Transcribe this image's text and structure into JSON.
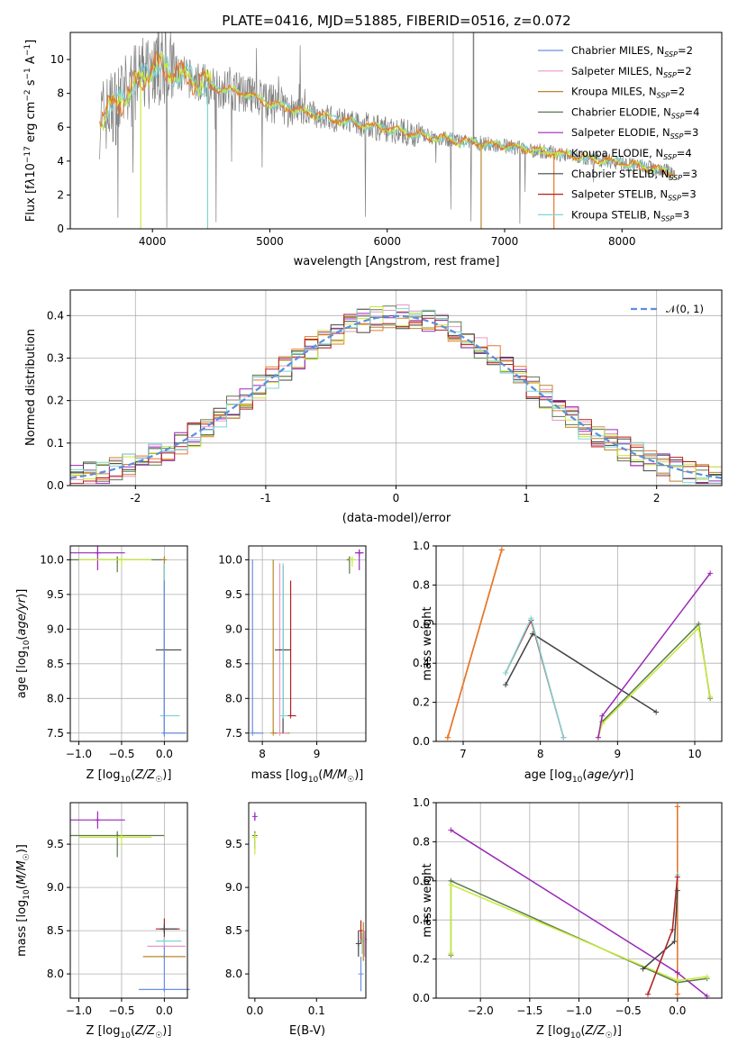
{
  "colors": {
    "Chabrier MILES": "#6b8fe0",
    "Salpeter MILES": "#e79ac6",
    "Kroupa MILES": "#b9862b",
    "Chabrier ELODIE": "#5a7a4a",
    "Salpeter ELODIE": "#9a28b6",
    "Kroupa ELODIE": "#c8ea3a",
    "Chabrier STELIB": "#444444",
    "Salpeter STELIB": "#b51f1f",
    "Kroupa STELIB": "#7fd4d6",
    "data": "#808080",
    "orange": "#e6782a",
    "gauss": "#5b8ede"
  },
  "chart_data": [
    {
      "id": "spectrum",
      "type": "line",
      "title": "PLATE=0416, MJD=51885, FIBERID=0516, z=0.072",
      "xlabel": "wavelength [Angstrom, rest frame]",
      "ylabel": "Flux [fλ10−17 erg cm−2 s−1 A−1]",
      "xlim": [
        3300,
        8850
      ],
      "ylim": [
        0,
        11.6
      ],
      "xticks": [
        4000,
        5000,
        6000,
        7000,
        8000
      ],
      "yticks": [
        0,
        2,
        4,
        6,
        8,
        10
      ],
      "grid": false,
      "legend": [
        {
          "name": "Chabrier MILES",
          "nssp": "2"
        },
        {
          "name": "Salpeter MILES",
          "nssp": "2"
        },
        {
          "name": "Kroupa MILES",
          "nssp": "2"
        },
        {
          "name": "Chabrier ELODIE",
          "nssp": "4"
        },
        {
          "name": "Salpeter ELODIE",
          "nssp": "3"
        },
        {
          "name": "Kroupa ELODIE",
          "nssp": "4"
        },
        {
          "name": "Chabrier STELIB",
          "nssp": "3"
        },
        {
          "name": "Salpeter STELIB",
          "nssp": "3"
        },
        {
          "name": "Kroupa STELIB",
          "nssp": "3"
        }
      ],
      "continuum_x": [
        3550,
        3700,
        3850,
        4000,
        4100,
        4300,
        4500,
        4800,
        5000,
        5300,
        5600,
        6000,
        6300,
        6600,
        7000,
        7400,
        7700,
        8000,
        8300,
        8450
      ],
      "continuum_y": [
        6.5,
        7.4,
        8.5,
        9.6,
        9.5,
        8.9,
        8.4,
        8.0,
        7.4,
        6.9,
        6.4,
        5.9,
        5.5,
        5.2,
        4.9,
        4.5,
        4.2,
        3.9,
        3.5,
        3.3
      ]
    },
    {
      "id": "residuals",
      "type": "line",
      "xlabel": "(data-model)/error",
      "ylabel": "Normed distribution",
      "xlim": [
        -2.5,
        2.5
      ],
      "ylim": [
        0,
        0.46
      ],
      "xticks": [
        -2,
        -1,
        0,
        1,
        2
      ],
      "yticks": [
        0.0,
        0.1,
        0.2,
        0.3,
        0.4
      ],
      "grid": true,
      "legend": "𝒩(0, 1)",
      "legend_position": "top-right"
    },
    {
      "id": "age-vs-Z",
      "type": "scatter",
      "xlabel": "Z [log10(Z/Z☉)]",
      "ylabel": "age  [log10(age/yr)]",
      "xlim": [
        -1.1,
        0.27
      ],
      "ylim": [
        7.38,
        10.2
      ],
      "xticks": [
        -1.0,
        -0.5,
        0.0
      ],
      "yticks": [
        7.5,
        8.0,
        8.5,
        9.0,
        9.5,
        10.0
      ],
      "grid": true,
      "points": [
        {
          "model": "Salpeter ELODIE",
          "x": -0.78,
          "y": 10.1,
          "ex": [
            0.32,
            0.32
          ],
          "ey": [
            0.25,
            0.1
          ]
        },
        {
          "model": "Chabrier ELODIE",
          "x": -0.55,
          "y": 10.0,
          "ex": [
            0.55,
            0.55
          ],
          "ey": [
            0.18,
            0.05
          ]
        },
        {
          "model": "Kroupa ELODIE",
          "x": -0.5,
          "y": 10.0,
          "ex": [
            0.5,
            0.35
          ],
          "ey": [
            0.1,
            0.05
          ]
        },
        {
          "model": "Kroupa MILES",
          "x": 0.0,
          "y": 10.0,
          "ex": [
            0.02,
            0.02
          ],
          "ey": [
            2.5,
            0.05
          ]
        },
        {
          "model": "Chabrier STELIB",
          "x": 0.0,
          "y": 8.7,
          "ex": [
            0.1,
            0.2
          ],
          "ey": [
            1.2,
            1.25
          ]
        },
        {
          "model": "Kroupa STELIB",
          "x": 0.0,
          "y": 7.75,
          "ex": [
            0.05,
            0.18
          ],
          "ey": [
            0.25,
            2.2
          ]
        },
        {
          "model": "Chabrier MILES",
          "x": 0.0,
          "y": 7.5,
          "ex": [
            0.02,
            0.25
          ],
          "ey": [
            0.05,
            2.2
          ]
        }
      ]
    },
    {
      "id": "age-vs-mass",
      "type": "scatter",
      "xlabel": "mass [log10(M/M☉)]",
      "xlim": [
        7.75,
        9.9
      ],
      "ylim": [
        7.38,
        10.2
      ],
      "xticks": [
        8,
        9
      ],
      "yticks": [
        7.5,
        8.0,
        8.5,
        9.0,
        9.5,
        10.0
      ],
      "grid": true,
      "points": [
        {
          "model": "Salpeter ELODIE",
          "x": 9.78,
          "y": 10.1,
          "ex": [
            0.08,
            0.08
          ],
          "ey": [
            0.25,
            0.05
          ]
        },
        {
          "model": "Chabrier ELODIE",
          "x": 9.6,
          "y": 10.0,
          "ex": [
            0.05,
            0.05
          ],
          "ey": [
            0.2,
            0.05
          ]
        },
        {
          "model": "Kroupa ELODIE",
          "x": 9.65,
          "y": 10.0,
          "ex": [
            0.05,
            0.05
          ],
          "ey": [
            0.1,
            0.05
          ]
        },
        {
          "model": "Chabrier MILES",
          "x": 7.82,
          "y": 7.5,
          "ex": [
            0.0,
            0.2
          ],
          "ey": [
            0.0,
            2.5
          ]
        },
        {
          "model": "Kroupa MILES",
          "x": 8.2,
          "y": 7.5,
          "ex": [
            0.0,
            0.3
          ],
          "ey": [
            0.0,
            2.5
          ]
        },
        {
          "model": "Salpeter MILES",
          "x": 8.32,
          "y": 7.5,
          "ex": [
            0.0,
            0.15
          ],
          "ey": [
            0.0,
            2.45
          ]
        },
        {
          "model": "Chabrier STELIB",
          "x": 8.38,
          "y": 8.7,
          "ex": [
            0.15,
            0.15
          ],
          "ey": [
            1.2,
            1.22
          ]
        },
        {
          "model": "Kroupa STELIB",
          "x": 8.38,
          "y": 7.75,
          "ex": [
            0.0,
            0.12
          ],
          "ey": [
            0.0,
            2.2
          ]
        },
        {
          "model": "Salpeter STELIB",
          "x": 8.52,
          "y": 7.75,
          "ex": [
            0.0,
            0.1
          ],
          "ey": [
            0.0,
            1.95
          ]
        }
      ]
    },
    {
      "id": "weight-vs-age",
      "type": "line",
      "xlabel": "age  [log10(age/yr)]",
      "ylabel": "mass weight",
      "xlim": [
        6.65,
        10.35
      ],
      "ylim": [
        0,
        1
      ],
      "xticks": [
        7,
        8,
        9,
        10
      ],
      "yticks": [
        0.0,
        0.2,
        0.4,
        0.6,
        0.8,
        1.0
      ],
      "grid": true,
      "series": [
        {
          "model": "Chabrier MILES",
          "x": [
            6.8,
            7.5
          ],
          "y": [
            0.02,
            0.98
          ]
        },
        {
          "model": "Salpeter MILES",
          "x": [
            6.8,
            7.5
          ],
          "y": [
            0.02,
            0.98
          ]
        },
        {
          "model": "Kroupa MILES",
          "x": [
            6.8,
            7.5
          ],
          "y": [
            0.02,
            0.98
          ]
        },
        {
          "model": "Chabrier STELIB",
          "x": [
            7.55,
            7.9,
            9.5
          ],
          "y": [
            0.29,
            0.55,
            0.15
          ]
        },
        {
          "model": "Salpeter STELIB",
          "x": [
            7.55,
            7.88,
            8.3
          ],
          "y": [
            0.35,
            0.62,
            0.02
          ]
        },
        {
          "model": "Kroupa STELIB",
          "x": [
            7.55,
            7.88,
            8.3
          ],
          "y": [
            0.35,
            0.63,
            0.02
          ]
        },
        {
          "model": "Chabrier ELODIE",
          "x": [
            8.75,
            8.8,
            10.05,
            10.2
          ],
          "y": [
            0.02,
            0.1,
            0.6,
            0.22
          ]
        },
        {
          "model": "Kroupa ELODIE",
          "x": [
            8.75,
            8.8,
            10.05,
            10.2
          ],
          "y": [
            0.02,
            0.09,
            0.58,
            0.23
          ]
        },
        {
          "model": "Salpeter ELODIE",
          "x": [
            8.75,
            8.8,
            10.2
          ],
          "y": [
            0.02,
            0.13,
            0.86
          ]
        }
      ]
    },
    {
      "id": "mass-vs-Z",
      "type": "scatter",
      "xlabel": "Z [log10(Z/Z☉)]",
      "ylabel": "mass [log10(M/M☉)]",
      "xlim": [
        -1.1,
        0.27
      ],
      "ylim": [
        7.72,
        9.98
      ],
      "xticks": [
        -1.0,
        -0.5,
        0.0
      ],
      "yticks": [
        8.0,
        8.5,
        9.0,
        9.5
      ],
      "grid": true,
      "points": [
        {
          "model": "Salpeter ELODIE",
          "x": -0.78,
          "y": 9.78,
          "ex": [
            0.32,
            0.32
          ],
          "ey": [
            0.1,
            0.1
          ]
        },
        {
          "model": "Chabrier ELODIE",
          "x": -0.55,
          "y": 9.6,
          "ex": [
            0.55,
            0.55
          ],
          "ey": [
            0.25,
            0.05
          ]
        },
        {
          "model": "Kroupa ELODIE",
          "x": -0.5,
          "y": 9.58,
          "ex": [
            0.5,
            0.35
          ],
          "ey": [
            0.1,
            0.05
          ]
        },
        {
          "model": "Salpeter STELIB",
          "x": 0.0,
          "y": 8.52,
          "ex": [
            0.1,
            0.18
          ],
          "ey": [
            0.15,
            0.12
          ]
        },
        {
          "model": "Chabrier STELIB",
          "x": 0.0,
          "y": 8.52,
          "ex": [
            0.05,
            0.15
          ],
          "ey": [
            0.05,
            0.05
          ]
        },
        {
          "model": "Kroupa STELIB",
          "x": 0.0,
          "y": 8.38,
          "ex": [
            0.1,
            0.2
          ],
          "ey": [
            0.05,
            0.05
          ]
        },
        {
          "model": "Salpeter MILES",
          "x": 0.0,
          "y": 8.32,
          "ex": [
            0.2,
            0.25
          ],
          "ey": [
            0.02,
            0.02
          ]
        },
        {
          "model": "Kroupa MILES",
          "x": 0.0,
          "y": 8.2,
          "ex": [
            0.25,
            0.25
          ],
          "ey": [
            0.02,
            0.02
          ]
        },
        {
          "model": "Chabrier MILES",
          "x": 0.0,
          "y": 7.82,
          "ex": [
            0.3,
            0.3
          ],
          "ey": [
            0.02,
            0.5
          ]
        }
      ]
    },
    {
      "id": "mass-vs-EBV",
      "type": "scatter",
      "xlabel": "E(B-V)",
      "xlim": [
        -0.01,
        0.18
      ],
      "ylim": [
        7.72,
        9.98
      ],
      "xticks": [
        0.0,
        0.1
      ],
      "yticks": [
        8.0,
        8.5,
        9.0,
        9.5
      ],
      "grid": false,
      "points": [
        {
          "model": "Salpeter ELODIE",
          "x": 0.0,
          "y": 9.82,
          "ey": [
            0.05,
            0.05
          ]
        },
        {
          "model": "Chabrier ELODIE",
          "x": 0.0,
          "y": 9.6,
          "ey": [
            0.15,
            0.05
          ]
        },
        {
          "model": "Kroupa ELODIE",
          "x": 0.0,
          "y": 9.58,
          "ey": [
            0.2,
            0.05
          ]
        },
        {
          "model": "Chabrier STELIB",
          "x": 0.168,
          "y": 8.35,
          "ey": [
            0.15,
            0.15
          ]
        },
        {
          "model": "Salpeter STELIB",
          "x": 0.172,
          "y": 8.5,
          "ey": [
            0.15,
            0.12
          ]
        },
        {
          "model": "Kroupa STELIB",
          "x": 0.174,
          "y": 8.38,
          "ey": [
            0.15,
            0.1
          ]
        },
        {
          "model": "Kroupa MILES",
          "x": 0.176,
          "y": 8.4,
          "ey": [
            0.25,
            0.2
          ]
        },
        {
          "model": "Salpeter MILES",
          "x": 0.178,
          "y": 8.4,
          "ey": [
            0.2,
            0.1
          ]
        },
        {
          "model": "Chabrier MILES",
          "x": 0.172,
          "y": 8.0,
          "ey": [
            0.2,
            0.2
          ]
        }
      ]
    },
    {
      "id": "weight-vs-Z",
      "type": "line",
      "xlabel": "Z [log10(Z/Z☉)]",
      "ylabel": "mass weight",
      "xlim": [
        -2.45,
        0.45
      ],
      "ylim": [
        0,
        1
      ],
      "xticks": [
        -2.0,
        -1.5,
        -1.0,
        -0.5,
        0.0
      ],
      "yticks": [
        0.0,
        0.2,
        0.4,
        0.6,
        0.8,
        1.0
      ],
      "grid": true,
      "series": [
        {
          "model": "Kroupa MILES",
          "x": [
            0.0,
            0.0
          ],
          "y": [
            0.02,
            0.98
          ]
        },
        {
          "model": "Chabrier MILES",
          "x": [
            0.0,
            0.0
          ],
          "y": [
            0.02,
            0.98
          ]
        },
        {
          "model": "Salpeter ELODIE",
          "x": [
            -2.3,
            0.0,
            0.3
          ],
          "y": [
            0.86,
            0.13,
            0.01
          ]
        },
        {
          "model": "Chabrier ELODIE",
          "x": [
            -2.3,
            -2.3,
            0.0,
            0.3
          ],
          "y": [
            0.22,
            0.6,
            0.08,
            0.1
          ]
        },
        {
          "model": "Kroupa ELODIE",
          "x": [
            -2.3,
            -2.3,
            0.0,
            0.3
          ],
          "y": [
            0.23,
            0.58,
            0.09,
            0.11
          ]
        },
        {
          "model": "Chabrier STELIB",
          "x": [
            -0.35,
            -0.03,
            0.0
          ],
          "y": [
            0.15,
            0.29,
            0.55
          ]
        },
        {
          "model": "Kroupa STELIB",
          "x": [
            -0.3,
            -0.05,
            0.0
          ],
          "y": [
            0.02,
            0.35,
            0.63
          ]
        },
        {
          "model": "Salpeter STELIB",
          "x": [
            -0.3,
            -0.05,
            0.0
          ],
          "y": [
            0.02,
            0.35,
            0.62
          ]
        }
      ]
    }
  ]
}
